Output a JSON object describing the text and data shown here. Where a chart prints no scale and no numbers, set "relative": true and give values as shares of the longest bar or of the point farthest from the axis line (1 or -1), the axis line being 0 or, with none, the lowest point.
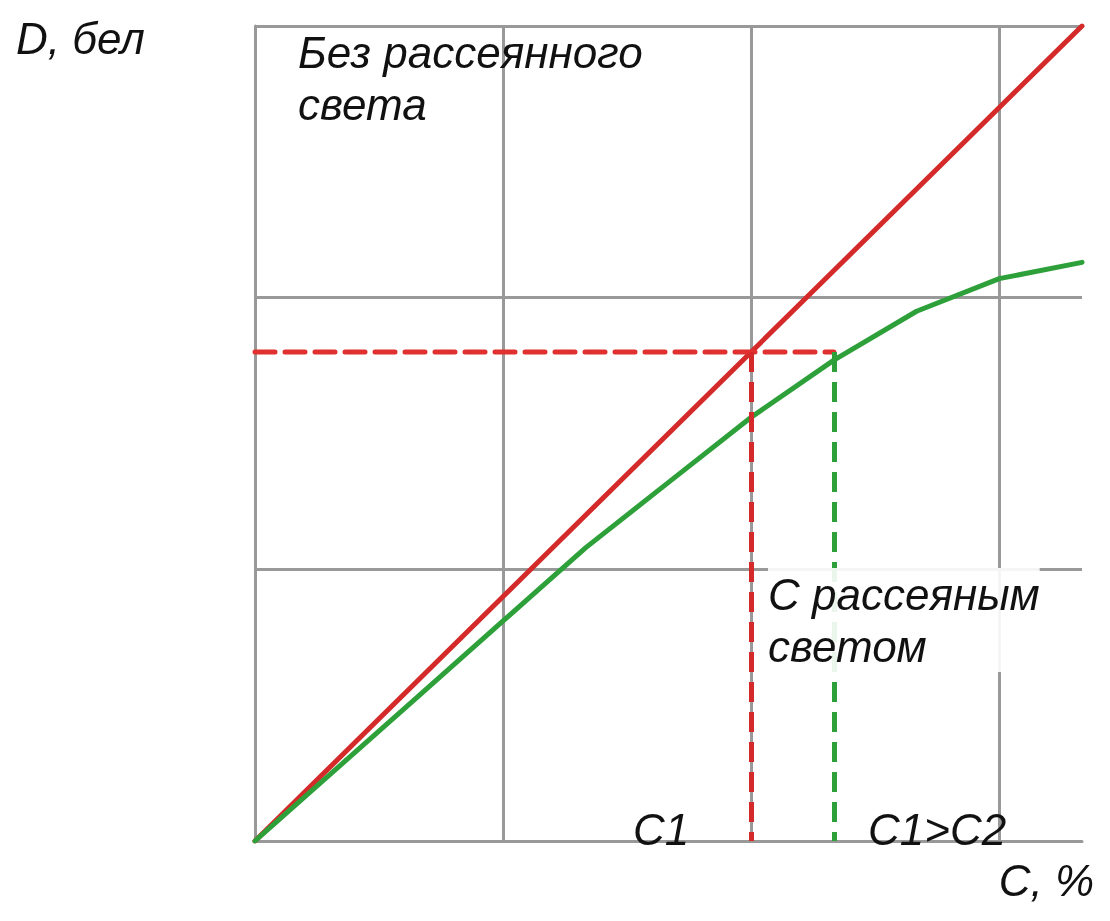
{
  "chart_data": {
    "type": "line",
    "relative": true,
    "xlabel": "C, %",
    "ylabel": "D, бел",
    "categories": [
      null,
      null,
      null,
      null,
      null,
      null,
      null,
      null,
      null,
      null,
      null
    ],
    "grid": true,
    "marker": "none",
    "series": [
      {
        "color": "#d42a2a",
        "values": [
          0,
          0.1,
          0.2,
          0.3,
          0.4,
          0.5,
          0.6,
          0.7,
          0.8,
          0.9,
          1
        ]
      },
      {
        "color": "#2ea03a",
        "values": [
          0,
          0.09,
          0.18,
          0.27,
          0.36,
          0.44,
          0.52,
          0.59,
          0.65,
          0.69,
          0.71
        ]
      },
      {
        "color": "#e03030",
        "line_style": "dashed",
        "values": [
          0.6,
          0.6,
          0.6,
          0.6,
          0.6,
          0.6,
          0.6,
          0.6,
          null,
          null,
          null
        ]
      }
    ],
    "annotations": [
      "Без рассеянного\nсвета",
      "С рассеяным\nсветом",
      "C1",
      "C1>C2"
    ]
  }
}
